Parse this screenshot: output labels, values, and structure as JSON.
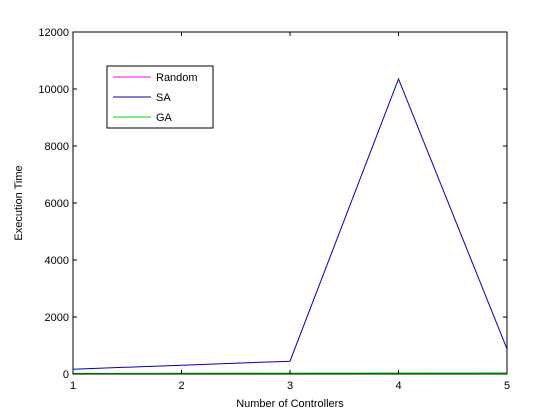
{
  "chart_data": {
    "type": "line",
    "title": "",
    "xlabel": "Number of Controllers",
    "ylabel": "Execution Time",
    "xlim": [
      1,
      5
    ],
    "ylim": [
      0,
      12000
    ],
    "xticks": [
      1,
      2,
      3,
      4,
      5
    ],
    "yticks": [
      0,
      2000,
      4000,
      6000,
      8000,
      10000,
      12000
    ],
    "grid": false,
    "legend_position": "top-left",
    "series": [
      {
        "name": "Random",
        "color": "#ff00ff",
        "x": [
          1,
          2,
          3,
          4,
          5
        ],
        "y": [
          3,
          3,
          3,
          3,
          3
        ]
      },
      {
        "name": "SA",
        "color": "#0000b4",
        "x": [
          1,
          2,
          3,
          4,
          5
        ],
        "y": [
          170,
          310,
          450,
          10350,
          880
        ]
      },
      {
        "name": "GA",
        "color": "#00dd00",
        "x": [
          1,
          2,
          3,
          4,
          5
        ],
        "y": [
          20,
          25,
          30,
          35,
          40
        ]
      }
    ]
  }
}
